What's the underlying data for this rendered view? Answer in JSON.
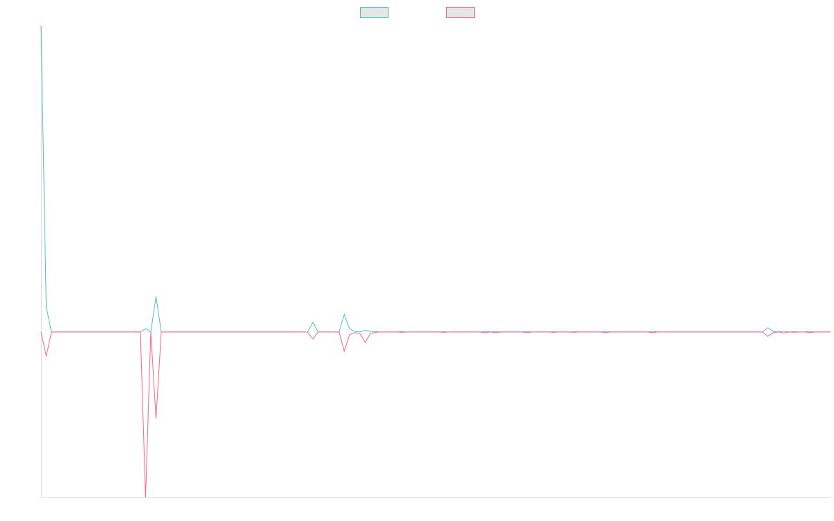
{
  "chart_data": {
    "type": "line",
    "categories": [
      null,
      null,
      null,
      null,
      null,
      null,
      null,
      null,
      null,
      null,
      null,
      null,
      null,
      null,
      null,
      null,
      null,
      null,
      null,
      null,
      null,
      null,
      null,
      null,
      null,
      null,
      null,
      null,
      null,
      null,
      null,
      null,
      null,
      null,
      null,
      null,
      null,
      null,
      null,
      null,
      null,
      null,
      null,
      null,
      null,
      null,
      null,
      null,
      null,
      null,
      null,
      null,
      null,
      null,
      null,
      null,
      null,
      null,
      null,
      null,
      null,
      null,
      null,
      null,
      null,
      null,
      null,
      null,
      null,
      null,
      null,
      null,
      null,
      null,
      null,
      null,
      null,
      null,
      null,
      null,
      null,
      null,
      null,
      null,
      null,
      null,
      null,
      null,
      null,
      null,
      null,
      null,
      null,
      null,
      null,
      null,
      null,
      null,
      null,
      null,
      null,
      null,
      null,
      null,
      null,
      null,
      null,
      null,
      null,
      null,
      null,
      null,
      null,
      null,
      null,
      null,
      null,
      null,
      null,
      null,
      null,
      null,
      null,
      null,
      null,
      null,
      null,
      null,
      null,
      null,
      null,
      null,
      null,
      null,
      null,
      null,
      null,
      null,
      null,
      null,
      null,
      null,
      null,
      null,
      null,
      null,
      null,
      null,
      null,
      null,
      null,
      null
    ],
    "series": [
      {
        "color": "#4bc0c0",
        "values": [
          100,
          8.2,
          0,
          0,
          0,
          0,
          0,
          0,
          0,
          0,
          0,
          0,
          0,
          0,
          0,
          0,
          0,
          0,
          0,
          0,
          1.1,
          0,
          11.6,
          0,
          0,
          0,
          0,
          0,
          0,
          0,
          0,
          0,
          0,
          0,
          0,
          0,
          0,
          0,
          0,
          0,
          0,
          0,
          0,
          0,
          0,
          0,
          0,
          0,
          0,
          0,
          0,
          0,
          3.2,
          0,
          0,
          0,
          0,
          0,
          5.7,
          1.1,
          0.2,
          0,
          0.5,
          0.2,
          0.1,
          0,
          0,
          0,
          0,
          0.1,
          0,
          0,
          0,
          0,
          0,
          0,
          0,
          0.1,
          0,
          0,
          0,
          0,
          0,
          0,
          0,
          0.2,
          0,
          0.2,
          0,
          0,
          0,
          0,
          0,
          0.2,
          0,
          0,
          0,
          0,
          0.1,
          0,
          0,
          0,
          0.1,
          0,
          0,
          0,
          0,
          0,
          0.2,
          0,
          0,
          0,
          0,
          0,
          0,
          0,
          0,
          0.2,
          0,
          0,
          0,
          0,
          0,
          0,
          0,
          0,
          0,
          0,
          0,
          0,
          0,
          0,
          0,
          0,
          0,
          0,
          0,
          0,
          0,
          1.4,
          0.2,
          0,
          0.3,
          0,
          0.1,
          0,
          0,
          0.2,
          0,
          0,
          0,
          0
        ]
      },
      {
        "color": "#ff6384",
        "values": [
          0,
          -7.9,
          0,
          0,
          0,
          0,
          0,
          0,
          0,
          0,
          0,
          0,
          0,
          0,
          0,
          0,
          0,
          0,
          0,
          0,
          -54,
          0,
          -28.3,
          0,
          0,
          0,
          0,
          0,
          0,
          0,
          0,
          0,
          0,
          0,
          0,
          0,
          0,
          0,
          0,
          0,
          0,
          0,
          0,
          0,
          0,
          0,
          0,
          0,
          0,
          0,
          0,
          0,
          -2.3,
          0,
          0,
          0,
          0,
          0,
          -6.3,
          -0.9,
          -0.2,
          -0.5,
          -3.4,
          -0.5,
          -0.1,
          0,
          0,
          0,
          0,
          -0.1,
          0,
          0,
          0,
          0,
          0,
          0,
          0,
          -0.1,
          0,
          0,
          0,
          0,
          0,
          0,
          0,
          -0.2,
          0,
          -0.2,
          0,
          0,
          0,
          0,
          0,
          -0.2,
          0,
          0,
          0,
          0,
          -0.1,
          0,
          0,
          0,
          -0.1,
          0,
          0,
          0,
          0,
          0,
          -0.2,
          0,
          0,
          0,
          0,
          0,
          0,
          0,
          0,
          -0.2,
          0,
          0,
          0,
          0,
          0,
          0,
          0,
          0,
          0,
          0,
          0,
          0,
          0,
          0,
          0,
          0,
          0,
          0,
          0,
          0,
          0,
          -1.4,
          -0.2,
          0,
          -0.3,
          0,
          -0.1,
          0,
          0,
          -0.2,
          0,
          0,
          0,
          0
        ]
      }
    ],
    "ylim": [
      -54,
      100
    ]
  }
}
